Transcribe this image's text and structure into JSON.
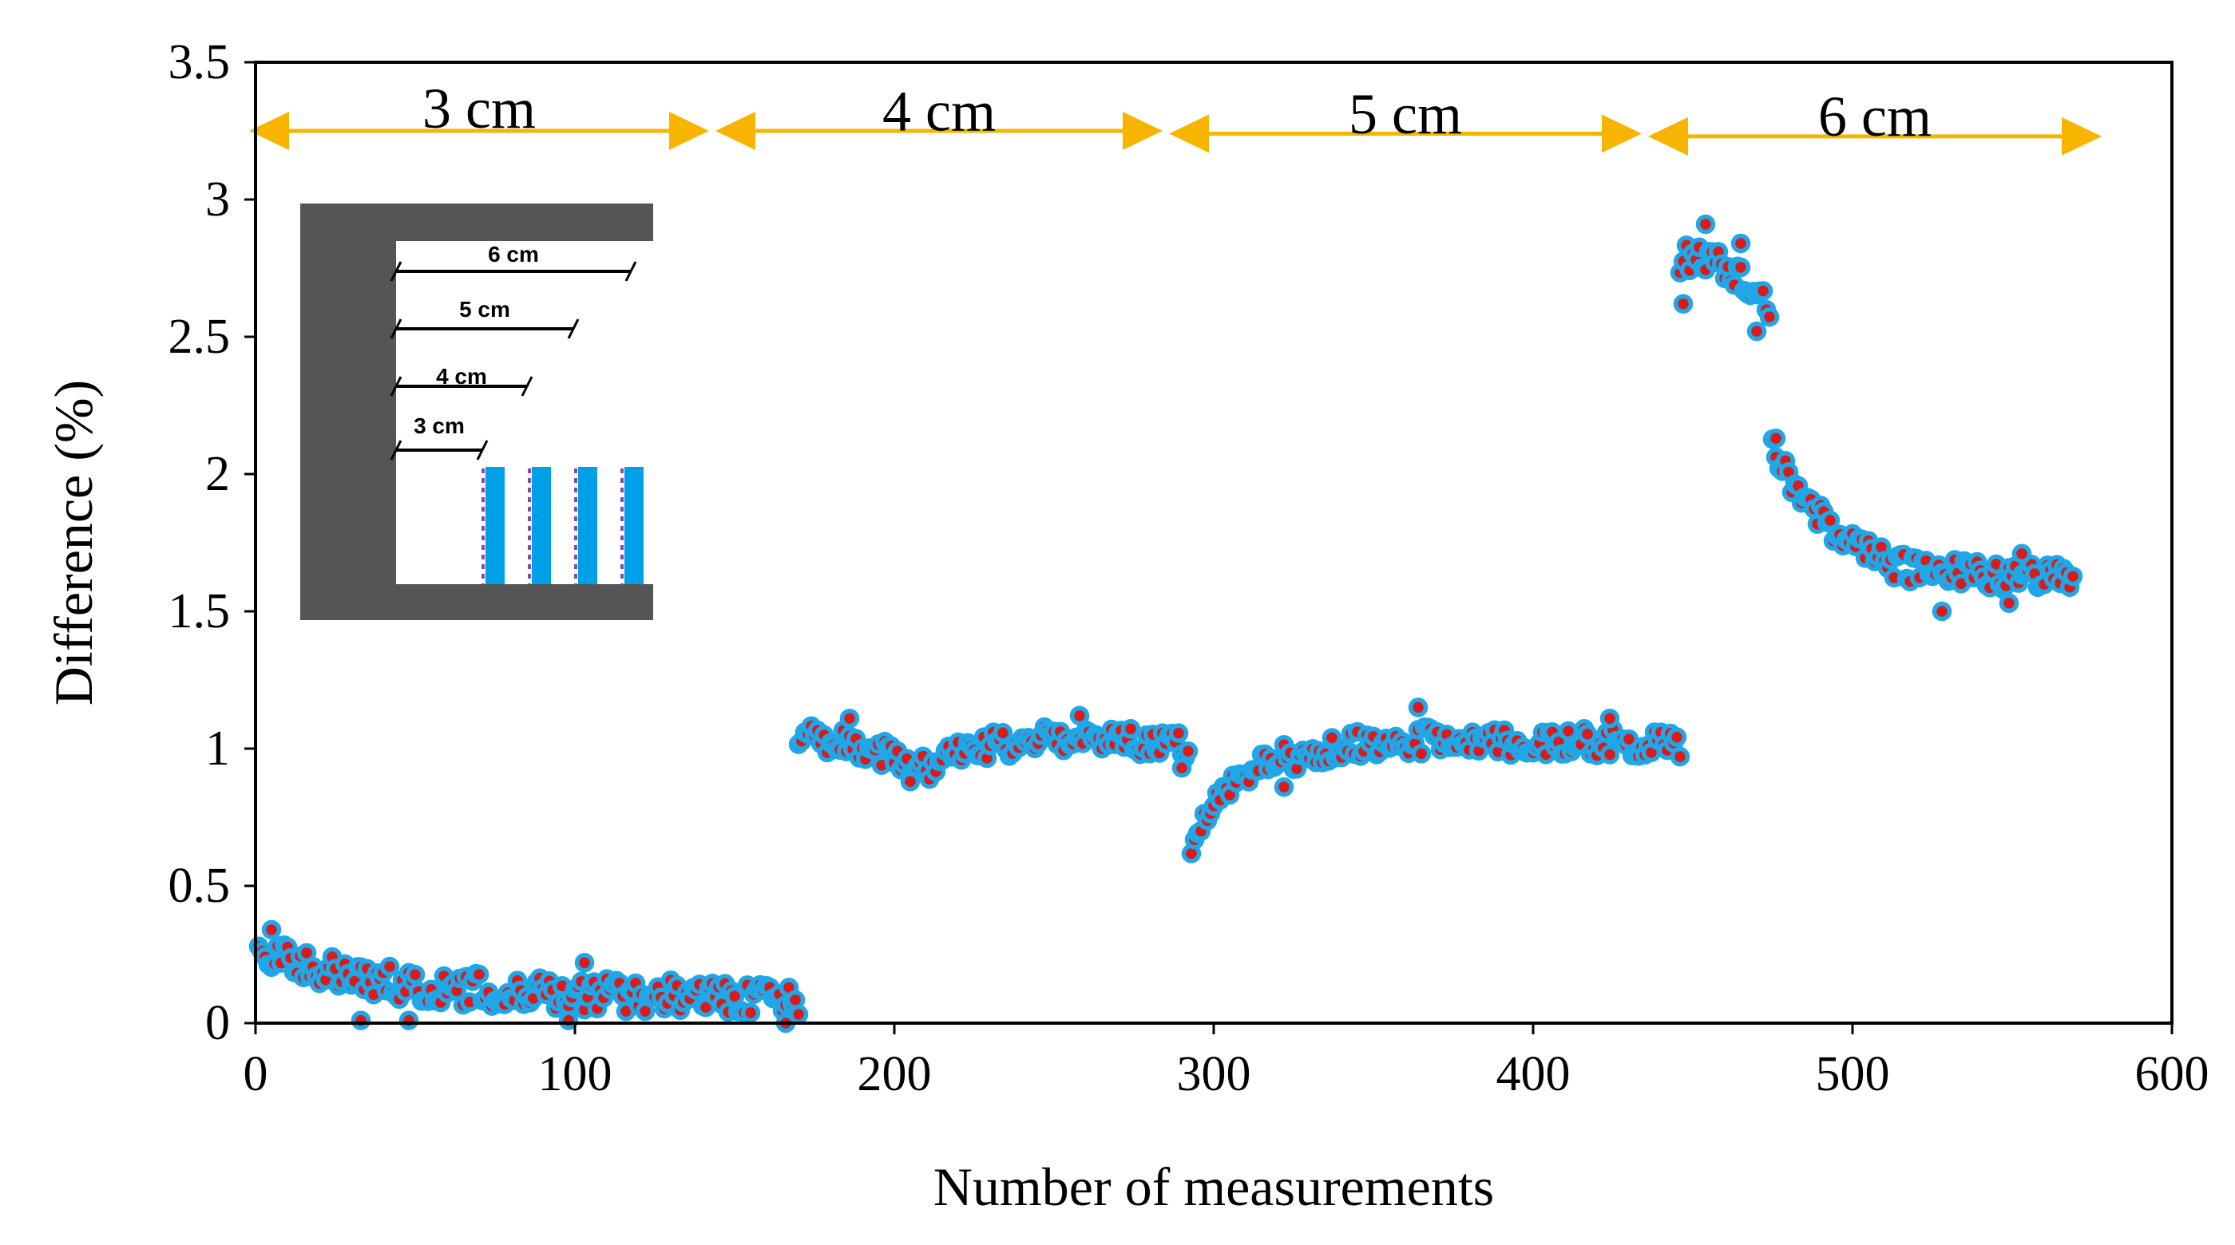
{
  "chart_data": {
    "type": "scatter",
    "title": "",
    "xlabel": "Number of measurements",
    "ylabel": "Difference (%)",
    "xlim": [
      0,
      600
    ],
    "ylim": [
      0,
      3.5
    ],
    "x_ticks": [
      0,
      100,
      200,
      300,
      400,
      500,
      600
    ],
    "x_tick_labels": [
      "0",
      "100",
      "200",
      "300",
      "400",
      "500",
      "600"
    ],
    "y_ticks": [
      0,
      0.5,
      1,
      1.5,
      2,
      2.5,
      3,
      3.5
    ],
    "y_tick_labels": [
      "0",
      "0.5",
      "1",
      "1.5",
      "2",
      "2.5",
      "3",
      "3.5"
    ],
    "grid": false,
    "marker": {
      "fill": "#d81b1b",
      "edge": "#1fa7e8"
    },
    "arrow_color": "#f7b500",
    "segments": [
      {
        "label": "3 cm",
        "x_start": -2,
        "x_end": 142,
        "y": 3.25,
        "label_y": 3.32
      },
      {
        "label": "4 cm",
        "x_start": 144,
        "x_end": 284,
        "y": 3.25,
        "label_y": 3.31
      },
      {
        "label": "5 cm",
        "x_start": 286,
        "x_end": 434,
        "y": 3.24,
        "label_y": 3.3
      },
      {
        "label": "6 cm",
        "x_start": 436,
        "x_end": 578,
        "y": 3.23,
        "label_y": 3.29
      }
    ],
    "series": [
      {
        "name": "3 cm",
        "x_range": [
          1,
          170
        ],
        "trend": [
          [
            1,
            0.28
          ],
          [
            20,
            0.2
          ],
          [
            50,
            0.13
          ],
          [
            100,
            0.11
          ],
          [
            170,
            0.08
          ]
        ],
        "noise": 0.06,
        "extra_points": [
          [
            5,
            0.34
          ],
          [
            33,
            0.01
          ],
          [
            48,
            0.01
          ],
          [
            98,
            0.01
          ],
          [
            166,
            0.0
          ],
          [
            103,
            0.22
          ]
        ]
      },
      {
        "name": "4 cm",
        "x_range": [
          170,
          292
        ],
        "trend": [
          [
            170,
            1.04
          ],
          [
            185,
            1.02
          ],
          [
            200,
            0.97
          ],
          [
            210,
            0.93
          ],
          [
            225,
            1.0
          ],
          [
            250,
            1.04
          ],
          [
            292,
            1.01
          ]
        ],
        "noise": 0.05,
        "extra_points": [
          [
            186,
            1.11
          ],
          [
            258,
            1.12
          ],
          [
            290,
            0.93
          ],
          [
            205,
            0.88
          ]
        ]
      },
      {
        "name": "5 cm",
        "x_range": [
          293,
          446
        ],
        "trend": [
          [
            293,
            0.66
          ],
          [
            300,
            0.78
          ],
          [
            310,
            0.9
          ],
          [
            320,
            0.96
          ],
          [
            335,
            1.0
          ],
          [
            360,
            1.03
          ],
          [
            446,
            1.02
          ]
        ],
        "noise": 0.05,
        "extra_points": [
          [
            364,
            1.15
          ],
          [
            322,
            0.86
          ],
          [
            424,
            1.11
          ]
        ]
      },
      {
        "name": "6 cm",
        "x_range": [
          446,
          569
        ],
        "trend": [
          [
            446,
            2.78
          ],
          [
            453,
            2.8
          ],
          [
            462,
            2.74
          ],
          [
            468,
            2.7
          ],
          [
            474,
            2.58
          ],
          [
            475,
            2.12
          ],
          [
            480,
            1.98
          ],
          [
            488,
            1.86
          ],
          [
            500,
            1.75
          ],
          [
            515,
            1.66
          ],
          [
            540,
            1.63
          ],
          [
            569,
            1.63
          ]
        ],
        "noise": 0.05,
        "extra_points": [
          [
            454,
            2.91
          ],
          [
            465,
            2.84
          ],
          [
            470,
            2.52
          ],
          [
            476,
            2.13
          ],
          [
            447,
            2.62
          ],
          [
            528,
            1.5
          ],
          [
            549,
            1.53
          ],
          [
            553,
            1.71
          ]
        ]
      }
    ],
    "inset": {
      "distances": [
        "6 cm",
        "5 cm",
        "4 cm",
        "3 cm"
      ]
    }
  }
}
